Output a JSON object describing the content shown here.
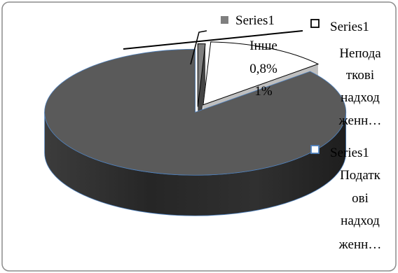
{
  "chart_data": {
    "type": "pie",
    "title": "",
    "is_3d": true,
    "exploded": true,
    "series": [
      {
        "name": "Series1",
        "categories": [
          "Інше",
          "Неподаткові надходження",
          "Податкові надходження"
        ],
        "values": [
          0.8,
          13.0,
          86.2
        ],
        "unit": "%"
      }
    ],
    "data_labels": [
      {
        "category": "Інше",
        "series": "Series1",
        "value": "0,8%",
        "percent": "1%"
      }
    ],
    "legend": {
      "placement": "right",
      "entries": [
        {
          "series": "Series1",
          "label_lines": [
            "Series1",
            "Непода",
            "ткові",
            "надход",
            "женн…"
          ]
        },
        {
          "series": "Series1",
          "label_lines": [
            "Series1",
            "Податк",
            "ові",
            "надход",
            "женн…"
          ]
        }
      ]
    },
    "colors": {
      "Інше": "#7f7f7f",
      "Неподаткові надходження": "#ffffff",
      "Податкові надходження": "#5a5a5a",
      "side_dark": "#2f2f2f",
      "outline": "#000000",
      "frame": "#8c8c8c",
      "accent_edge": "#4f81bd"
    }
  }
}
